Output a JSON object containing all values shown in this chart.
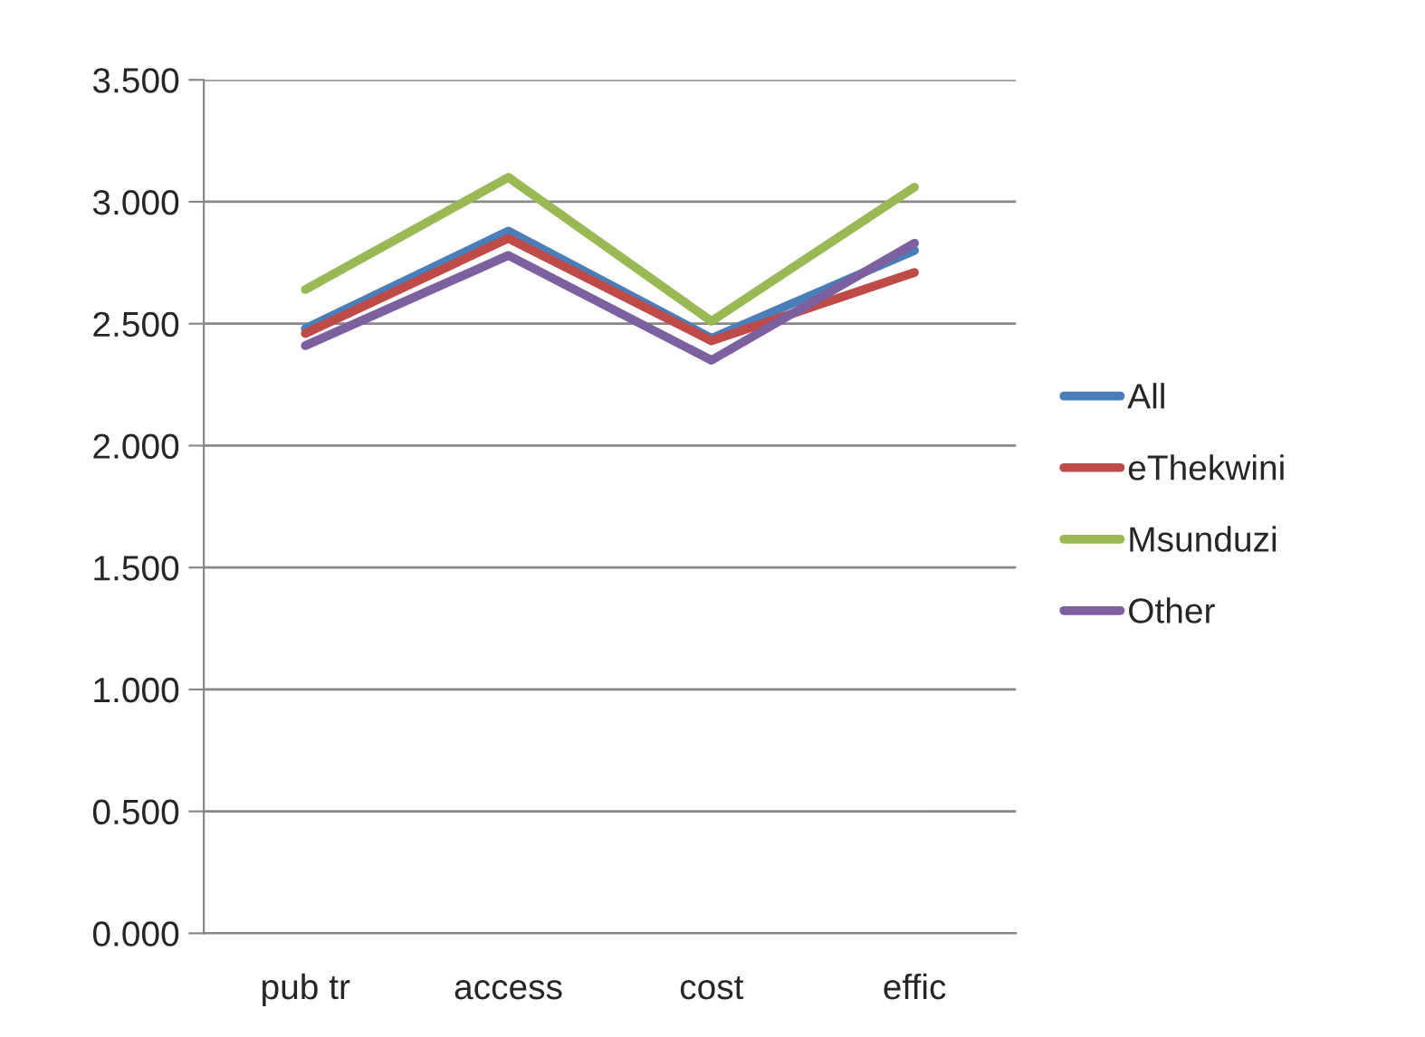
{
  "chart_data": {
    "type": "line",
    "categories": [
      "pub tr",
      "access",
      "cost",
      "effic"
    ],
    "series": [
      {
        "name": "All",
        "color": "#4a7ebb",
        "values": [
          2.48,
          2.88,
          2.44,
          2.8
        ]
      },
      {
        "name": "eThekwini",
        "color": "#be4b48",
        "values": [
          2.46,
          2.85,
          2.43,
          2.71
        ]
      },
      {
        "name": "Msunduzi",
        "color": "#98b954",
        "values": [
          2.64,
          3.1,
          2.51,
          3.06
        ]
      },
      {
        "name": "Other",
        "color": "#7d60a0",
        "values": [
          2.41,
          2.78,
          2.35,
          2.83
        ]
      }
    ],
    "ylim": [
      0,
      3.5
    ],
    "yticks": [
      {
        "value": 0,
        "label": "0.000"
      },
      {
        "value": 0.5,
        "label": "0.500"
      },
      {
        "value": 1,
        "label": "1.000"
      },
      {
        "value": 1.5,
        "label": "1.500"
      },
      {
        "value": 2,
        "label": "2.000"
      },
      {
        "value": 2.5,
        "label": "2.500"
      },
      {
        "value": 3,
        "label": "3.000"
      },
      {
        "value": 3.5,
        "label": "3.500"
      }
    ],
    "grid": "y",
    "legend": "right",
    "marker": "none",
    "line_style": "solid"
  }
}
